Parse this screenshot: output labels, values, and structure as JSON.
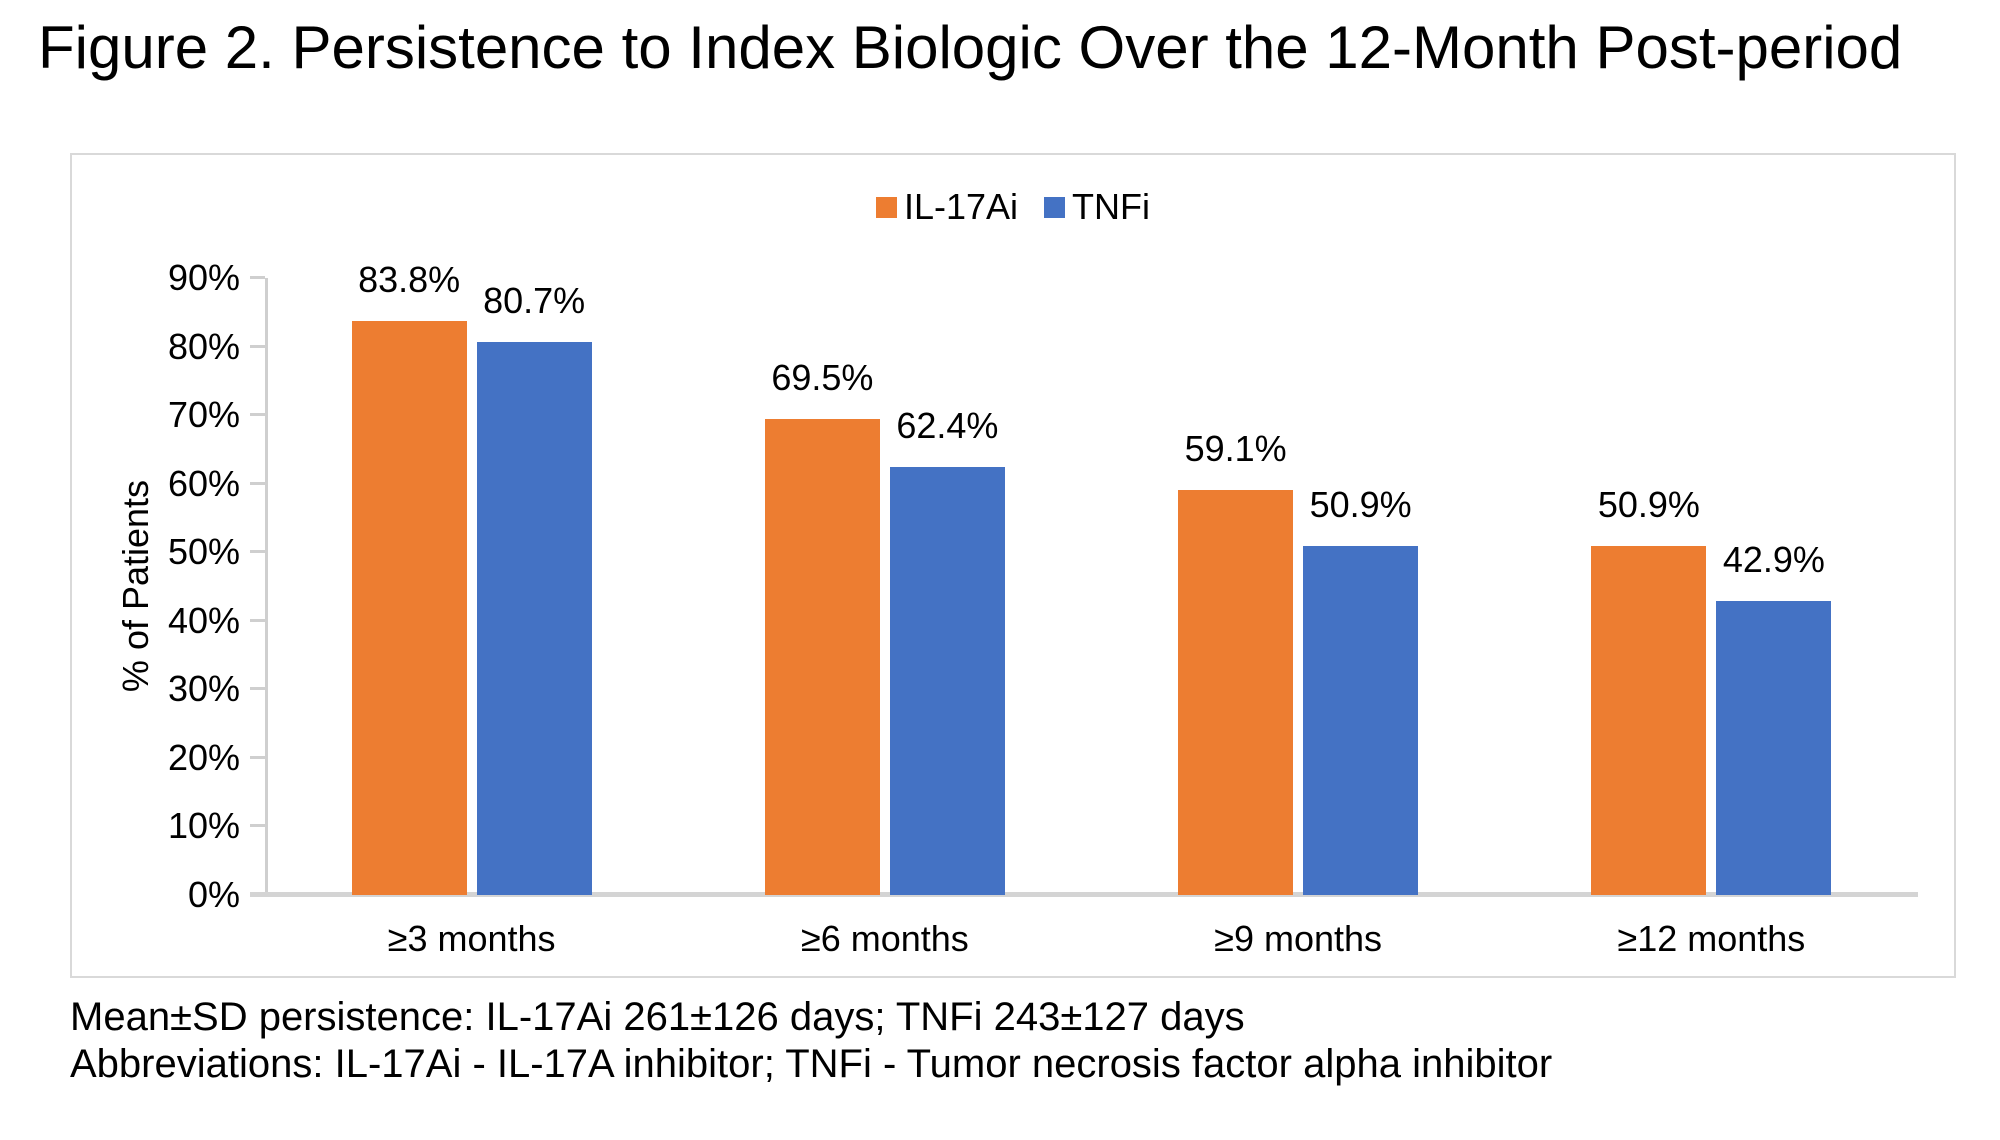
{
  "title": "Figure 2. Persistence to Index Biologic Over the 12-Month Post-period",
  "chart_data": {
    "type": "bar",
    "categories": [
      "≥3 months",
      "≥6 months",
      "≥9 months",
      "≥12 months"
    ],
    "series": [
      {
        "name": "IL-17Ai",
        "color": "#ED7D31",
        "values": [
          83.8,
          69.5,
          59.1,
          50.9
        ]
      },
      {
        "name": "TNFi",
        "color": "#4472C4",
        "values": [
          80.7,
          62.4,
          50.9,
          42.9
        ]
      }
    ],
    "data_labels": [
      [
        "83.8%",
        "69.5%",
        "59.1%",
        "50.9%"
      ],
      [
        "80.7%",
        "62.4%",
        "50.9%",
        "42.9%"
      ]
    ],
    "xlabel": "",
    "ylabel": "% of Patients",
    "ylim": [
      0,
      90
    ],
    "yticks": [
      0,
      10,
      20,
      30,
      40,
      50,
      60,
      70,
      80,
      90
    ],
    "ytick_suffix": "%",
    "value_suffix": "%",
    "legend_position": "top-center",
    "grid": false
  },
  "footnotes": [
    "Mean±SD persistence: IL-17Ai 261±126 days; TNFi 243±127 days",
    "Abbreviations: IL-17Ai - IL-17A inhibitor; TNFi - Tumor necrosis factor alpha inhibitor"
  ]
}
